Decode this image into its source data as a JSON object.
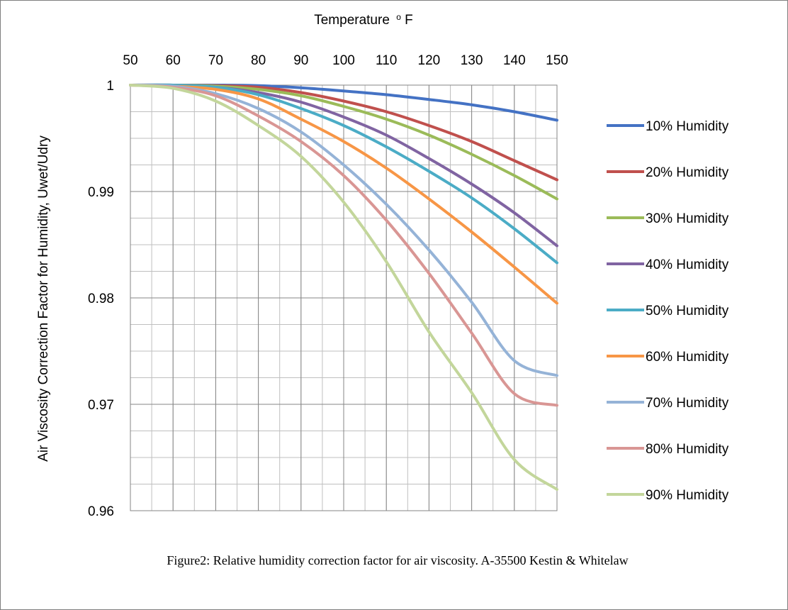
{
  "chart_data": {
    "type": "line",
    "title": "",
    "xlabel": "Temperature",
    "xlabel_unit_prefix": "o",
    "xlabel_unit": "F",
    "ylabel": "Air Viscosity Correction Factor for Humidity, Uwet/Udry",
    "xlim": [
      50,
      150
    ],
    "ylim": [
      0.96,
      1.0
    ],
    "x_axis_position": "top",
    "x_major_ticks": [
      50,
      60,
      70,
      80,
      90,
      100,
      110,
      120,
      130,
      140,
      150
    ],
    "y_major_ticks": [
      0.96,
      0.97,
      0.98,
      0.99,
      1.0
    ],
    "x_tick_labels": [
      "50",
      "60",
      "70",
      "80",
      "90",
      "100",
      "110",
      "120",
      "130",
      "140",
      "150"
    ],
    "y_tick_labels": [
      "0.96",
      "0.97",
      "0.98",
      "0.99",
      "1"
    ],
    "grid": true,
    "legend_position": "right",
    "x": [
      50,
      60,
      70,
      80,
      90,
      100,
      110,
      120,
      130,
      140,
      150
    ],
    "series": [
      {
        "name": "10% Humidity",
        "color": "#4472c4",
        "values": [
          1.0,
          1.0,
          1.0,
          0.99995,
          0.99975,
          0.99945,
          0.9991,
          0.99865,
          0.99815,
          0.9975,
          0.9967
        ]
      },
      {
        "name": "20% Humidity",
        "color": "#c0504d",
        "values": [
          1.0,
          1.0,
          0.99995,
          0.9998,
          0.9993,
          0.9985,
          0.9975,
          0.9962,
          0.9947,
          0.9929,
          0.9911
        ]
      },
      {
        "name": "30% Humidity",
        "color": "#9bbb59",
        "values": [
          1.0,
          1.0,
          0.9999,
          0.9996,
          0.999,
          0.998,
          0.9968,
          0.9953,
          0.9935,
          0.9915,
          0.9893
        ]
      },
      {
        "name": "40% Humidity",
        "color": "#8064a2",
        "values": [
          1.0,
          1.0,
          0.9998,
          0.9993,
          0.9984,
          0.997,
          0.9953,
          0.9931,
          0.9907,
          0.988,
          0.9849
        ]
      },
      {
        "name": "50% Humidity",
        "color": "#4bacc6",
        "values": [
          1.0,
          1.0,
          0.9998,
          0.9991,
          0.9978,
          0.9962,
          0.9942,
          0.9919,
          0.9894,
          0.9865,
          0.9833
        ]
      },
      {
        "name": "60% Humidity",
        "color": "#f79646",
        "values": [
          1.0,
          0.9999,
          0.9996,
          0.9987,
          0.9968,
          0.9947,
          0.9922,
          0.9893,
          0.9862,
          0.9829,
          0.9795
        ]
      },
      {
        "name": "70% Humidity",
        "color": "#95b3d7",
        "values": [
          1.0,
          0.9999,
          0.9992,
          0.9978,
          0.9956,
          0.9925,
          0.9888,
          0.9845,
          0.9796,
          0.9741,
          0.9727
        ]
      },
      {
        "name": "80% Humidity",
        "color": "#d99694",
        "values": [
          1.0,
          0.9998,
          0.999,
          0.9971,
          0.9947,
          0.9915,
          0.9873,
          0.9823,
          0.9767,
          0.971,
          0.9699
        ]
      },
      {
        "name": "90% Humidity",
        "color": "#c3d69b",
        "values": [
          1.0,
          0.9997,
          0.9985,
          0.9962,
          0.9933,
          0.989,
          0.9834,
          0.9768,
          0.9711,
          0.9648,
          0.962
        ]
      }
    ]
  },
  "caption": "Figure2: Relative humidity correction factor for air viscosity.  A-35500 Kestin & Whitelaw"
}
